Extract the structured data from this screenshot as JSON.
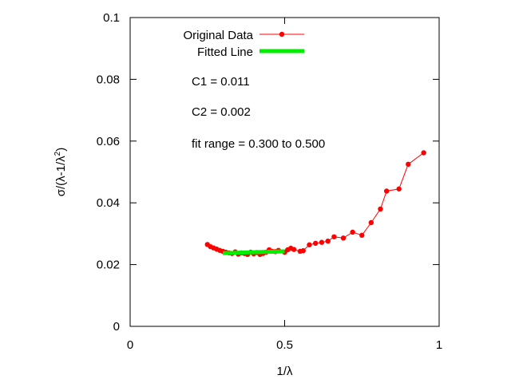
{
  "chart_data": {
    "type": "line",
    "title": "",
    "xlabel": "1/λ",
    "ylabel_parts": {
      "pre": "σ/(λ-1/λ",
      "sup": "2",
      "post": ")"
    },
    "xlim": [
      0,
      1
    ],
    "ylim": [
      0,
      0.1
    ],
    "xticks": [
      0,
      0.5,
      1
    ],
    "xtick_labels": [
      "0",
      "0.5",
      "1"
    ],
    "yticks": [
      0,
      0.02,
      0.04,
      0.06,
      0.08,
      0.1
    ],
    "ytick_labels": [
      "0",
      "0.02",
      "0.04",
      "0.06",
      "0.08",
      "0.1"
    ],
    "grid": false,
    "legend_position": "top-left",
    "series": [
      {
        "name": "Original Data",
        "color": "#ff0000",
        "marker": "circle",
        "x": [
          0.25,
          0.26,
          0.27,
          0.28,
          0.29,
          0.3,
          0.31,
          0.32,
          0.33,
          0.34,
          0.35,
          0.36,
          0.37,
          0.38,
          0.39,
          0.4,
          0.41,
          0.42,
          0.43,
          0.44,
          0.45,
          0.46,
          0.47,
          0.48,
          0.5,
          0.51,
          0.52,
          0.53,
          0.55,
          0.56,
          0.58,
          0.6,
          0.62,
          0.64,
          0.66,
          0.69,
          0.72,
          0.75,
          0.78,
          0.81,
          0.83,
          0.87,
          0.9,
          0.95
        ],
        "y": [
          0.0265,
          0.0258,
          0.0254,
          0.025,
          0.0246,
          0.0243,
          0.024,
          0.0238,
          0.0236,
          0.0241,
          0.0234,
          0.0238,
          0.0236,
          0.0233,
          0.024,
          0.0235,
          0.0239,
          0.0233,
          0.0236,
          0.024,
          0.0248,
          0.0243,
          0.0242,
          0.0246,
          0.024,
          0.0248,
          0.0253,
          0.0249,
          0.0243,
          0.0245,
          0.0264,
          0.0269,
          0.0272,
          0.0276,
          0.029,
          0.0286,
          0.0305,
          0.0295,
          0.0336,
          0.038,
          0.0438,
          0.0445,
          0.0525,
          0.0562
        ]
      },
      {
        "name": "Fitted Line",
        "color": "#00ee00",
        "x": [
          0.3,
          0.5
        ],
        "y": [
          0.0237,
          0.0243
        ]
      }
    ],
    "annotations": [
      "C1 = 0.011",
      "C2 = 0.002",
      "fit range = 0.300 to 0.500"
    ]
  }
}
